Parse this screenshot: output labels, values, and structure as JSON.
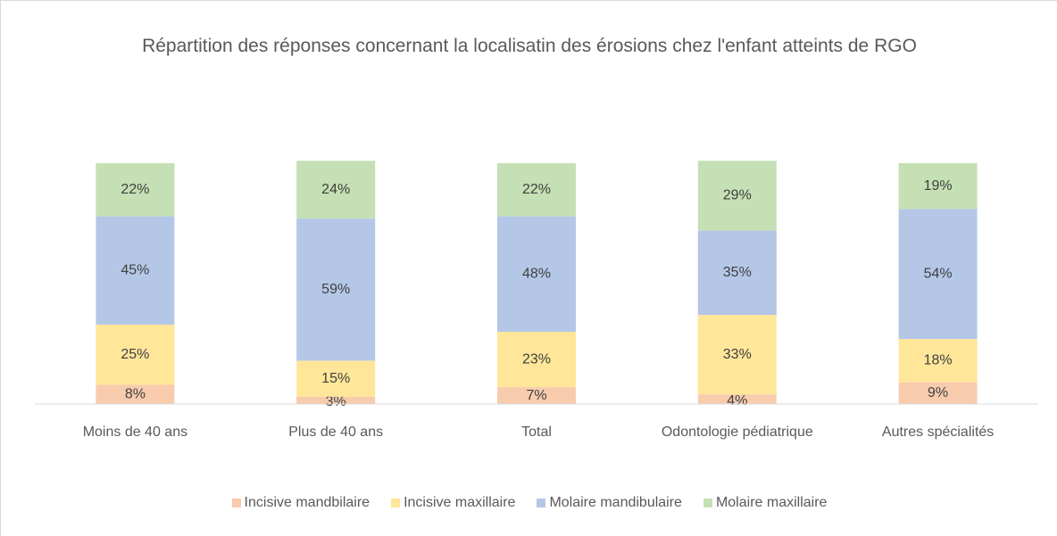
{
  "chart_data": {
    "type": "stacked_bar",
    "title": "Répartition des réponses concernant la localisatin des érosions chez l'enfant atteints de RGO",
    "categories": [
      "Moins de 40 ans",
      "Plus de 40 ans",
      "Total",
      "Odontologie pédiatrique",
      "Autres spécialités"
    ],
    "series": [
      {
        "name": "Incisive mandbilaire",
        "color": "#f8cbad",
        "values": [
          8,
          3,
          7,
          4,
          9
        ],
        "value_labels": [
          "8%",
          "3%",
          "7%",
          "4%",
          "9%"
        ]
      },
      {
        "name": "Incisive maxillaire",
        "color": "#ffe699",
        "values": [
          25,
          15,
          23,
          33,
          18
        ],
        "value_labels": [
          "25%",
          "15%",
          "23%",
          "33%",
          "18%"
        ]
      },
      {
        "name": "Molaire mandibulaire",
        "color": "#b4c7e7",
        "values": [
          45,
          59,
          48,
          35,
          54
        ],
        "value_labels": [
          "45%",
          "59%",
          "48%",
          "35%",
          "54%"
        ]
      },
      {
        "name": "Molaire maxillaire",
        "color": "#c5e0b4",
        "values": [
          22,
          24,
          22,
          29,
          19
        ],
        "value_labels": [
          "22%",
          "24%",
          "22%",
          "29%",
          "19%"
        ]
      }
    ],
    "legend": "bottom"
  }
}
